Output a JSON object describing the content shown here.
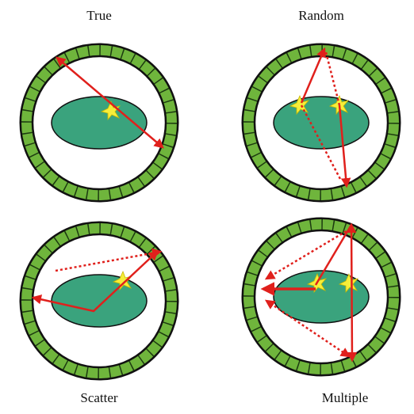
{
  "panels": [
    {
      "label": "True"
    },
    {
      "label": "Random"
    },
    {
      "label": "Scatter"
    },
    {
      "label": "Multiple"
    }
  ]
}
